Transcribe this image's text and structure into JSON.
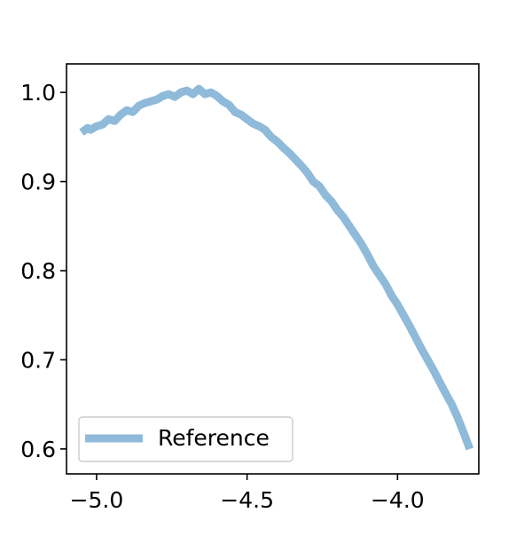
{
  "chart_data": {
    "type": "line",
    "title": "",
    "xlabel": "",
    "ylabel": "",
    "xlim": [
      -5.1,
      -3.73
    ],
    "ylim": [
      0.572,
      1.032
    ],
    "grid": false,
    "legend_position": "lower-left",
    "xticks": [
      -5.0,
      -4.5,
      -4.0
    ],
    "xtick_labels": [
      "−5.0",
      "−4.5",
      "−4.0"
    ],
    "yticks": [
      0.6,
      0.7,
      0.8,
      0.9,
      1.0
    ],
    "ytick_labels": [
      "0.6",
      "0.7",
      "0.8",
      "0.9",
      "1.0"
    ],
    "series": [
      {
        "name": "Reference",
        "color": "#8fbad9",
        "x": [
          -5.05,
          -5.03,
          -5.02,
          -5.0,
          -4.98,
          -4.96,
          -4.94,
          -4.92,
          -4.9,
          -4.88,
          -4.86,
          -4.84,
          -4.82,
          -4.8,
          -4.78,
          -4.76,
          -4.74,
          -4.72,
          -4.7,
          -4.68,
          -4.66,
          -4.64,
          -4.62,
          -4.6,
          -4.58,
          -4.56,
          -4.54,
          -4.52,
          -4.5,
          -4.48,
          -4.46,
          -4.44,
          -4.42,
          -4.4,
          -4.38,
          -4.36,
          -4.34,
          -4.32,
          -4.3,
          -4.28,
          -4.26,
          -4.24,
          -4.22,
          -4.2,
          -4.18,
          -4.16,
          -4.14,
          -4.12,
          -4.1,
          -4.08,
          -4.06,
          -4.04,
          -4.02,
          -4.0,
          -3.98,
          -3.96,
          -3.94,
          -3.92,
          -3.9,
          -3.88,
          -3.86,
          -3.84,
          -3.82,
          -3.8,
          -3.78,
          -3.76
        ],
        "y": [
          0.955,
          0.96,
          0.958,
          0.962,
          0.964,
          0.97,
          0.968,
          0.975,
          0.98,
          0.978,
          0.985,
          0.988,
          0.99,
          0.992,
          0.996,
          0.998,
          0.995,
          1.0,
          1.002,
          0.998,
          1.004,
          0.998,
          1.0,
          0.996,
          0.99,
          0.986,
          0.978,
          0.975,
          0.97,
          0.965,
          0.962,
          0.958,
          0.95,
          0.945,
          0.938,
          0.932,
          0.925,
          0.918,
          0.91,
          0.9,
          0.895,
          0.885,
          0.878,
          0.868,
          0.86,
          0.85,
          0.84,
          0.83,
          0.818,
          0.805,
          0.795,
          0.785,
          0.772,
          0.762,
          0.75,
          0.738,
          0.725,
          0.712,
          0.7,
          0.688,
          0.675,
          0.662,
          0.65,
          0.635,
          0.618,
          0.6
        ]
      }
    ]
  }
}
